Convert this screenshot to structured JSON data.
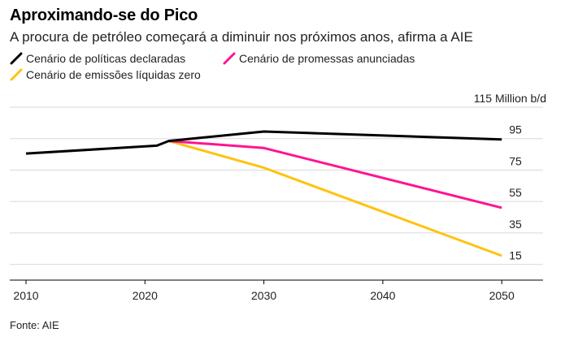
{
  "header": {
    "title": "Aproximando-se do Pico",
    "subtitle": "A procura de petróleo começará a diminuir nos próximos anos, afirma a AIE"
  },
  "footer": {
    "source": "Fonte: AIE"
  },
  "chart_data": {
    "type": "line",
    "title": "Aproximando-se do Pico",
    "subtitle": "A procura de petróleo começará a diminuir nos próximos anos, afirma a AIE",
    "unit_label": "115 Million b/d",
    "xlim": [
      2009,
      2053
    ],
    "ylim": [
      5,
      115
    ],
    "x_ticks": [
      2010,
      2020,
      2030,
      2040,
      2050
    ],
    "y_ticks": [
      15,
      35,
      55,
      75,
      95
    ],
    "y_axis_position": "right",
    "grid": "horizontal",
    "legend_position": "top-left",
    "series": [
      {
        "name": "Cenário de políticas declaradas",
        "color": "#000000",
        "points": [
          [
            2010,
            85.5
          ],
          [
            2021,
            90.5
          ],
          [
            2022,
            93.5
          ],
          [
            2030,
            99.5
          ],
          [
            2050,
            94.5
          ]
        ]
      },
      {
        "name": "Cenário de promessas anunciadas",
        "color": "#ff1493",
        "points": [
          [
            2022,
            93.5
          ],
          [
            2030,
            89
          ],
          [
            2050,
            51
          ]
        ]
      },
      {
        "name": "Cenário de emissões líquidas zero",
        "color": "#ffc20e",
        "points": [
          [
            2022,
            93.5
          ],
          [
            2030,
            76.5
          ],
          [
            2050,
            20.5
          ]
        ]
      }
    ]
  }
}
